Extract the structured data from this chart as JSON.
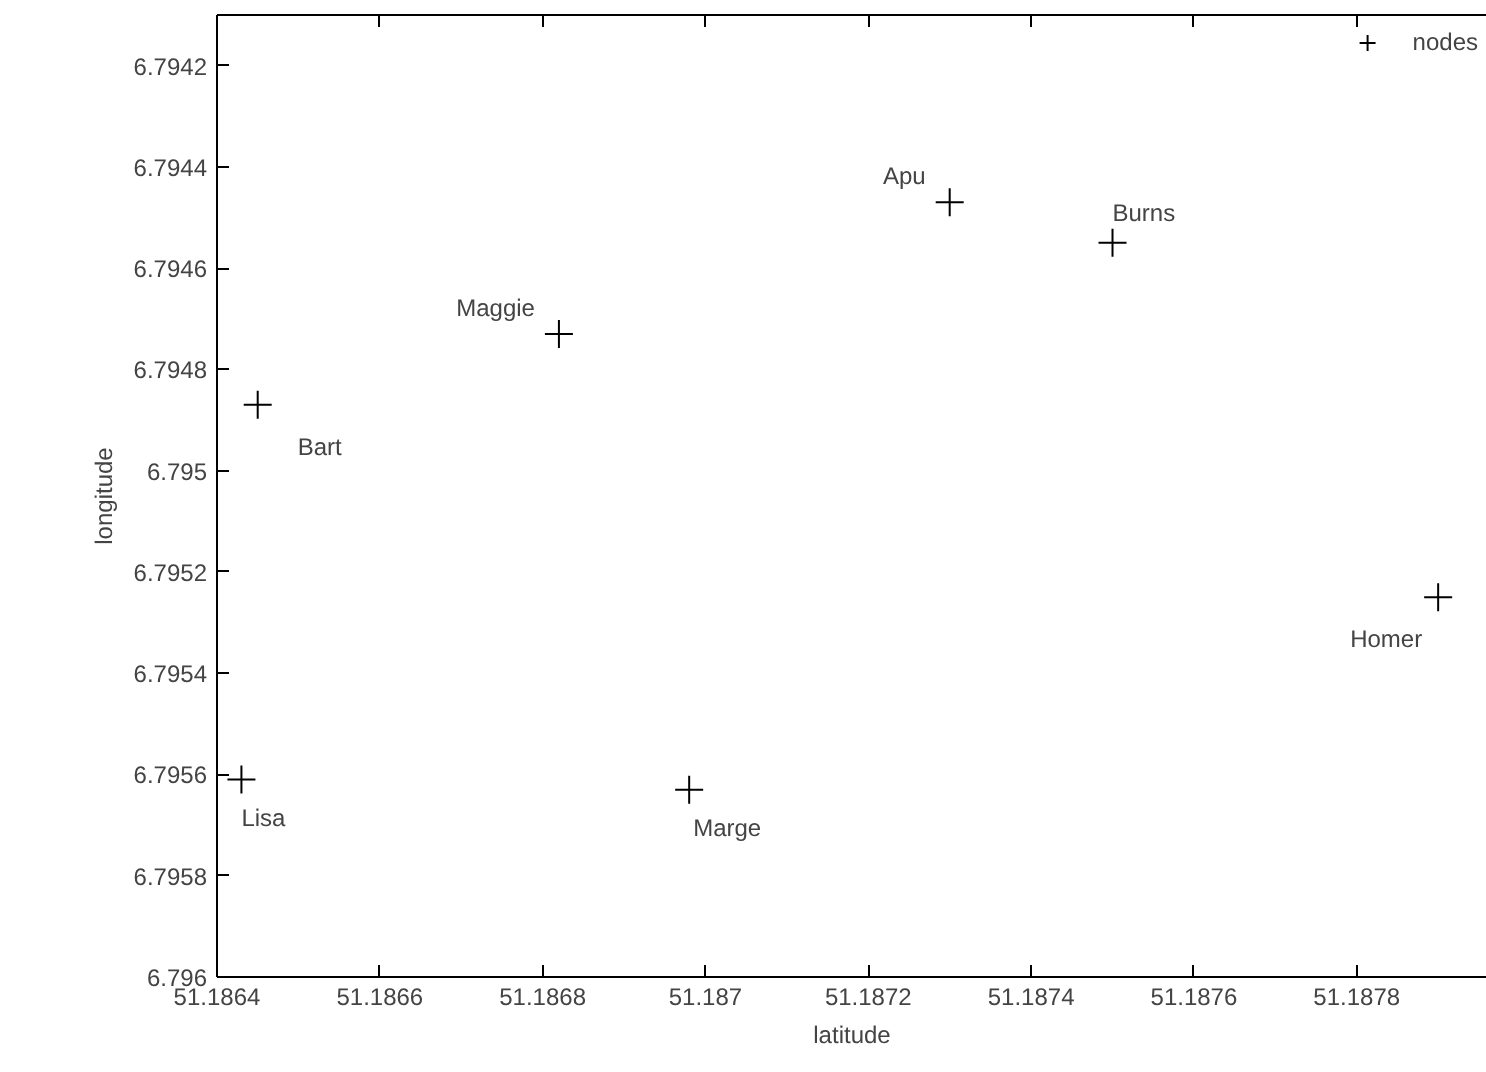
{
  "chart_data": {
    "type": "scatter",
    "xlabel": "latitude",
    "ylabel": "longitude",
    "xlim": [
      51.1864,
      51.18796
    ],
    "ylim": [
      6.796,
      6.7941
    ],
    "xticks": [
      51.1864,
      51.1866,
      51.1868,
      51.187,
      51.1872,
      51.1874,
      51.1876,
      51.1878
    ],
    "yticks": [
      6.7942,
      6.7944,
      6.7946,
      6.7948,
      6.795,
      6.7952,
      6.7954,
      6.7956,
      6.7958,
      6.796
    ],
    "series": [
      {
        "name": "nodes",
        "color": "#000000",
        "x": [
          51.1873,
          51.1875,
          51.18682,
          51.18645,
          51.1879,
          51.18643,
          51.18698
        ],
        "values": [
          6.79447,
          6.79455,
          6.79473,
          6.79487,
          6.79525,
          6.79561,
          6.79563
        ]
      }
    ],
    "annotations": [
      {
        "text": "Apu",
        "x": 51.1873,
        "y": 6.79447
      },
      {
        "text": "Burns",
        "x": 51.1875,
        "y": 6.79455
      },
      {
        "text": "Maggie",
        "x": 51.18682,
        "y": 6.79473
      },
      {
        "text": "Bart",
        "x": 51.18645,
        "y": 6.79487
      },
      {
        "text": "Homer",
        "x": 51.1879,
        "y": 6.79525
      },
      {
        "text": "Lisa",
        "x": 51.18643,
        "y": 6.79561
      },
      {
        "text": "Marge",
        "x": 51.18698,
        "y": 6.79563
      }
    ],
    "marker": "cross",
    "grid": false,
    "legend": "top right"
  }
}
